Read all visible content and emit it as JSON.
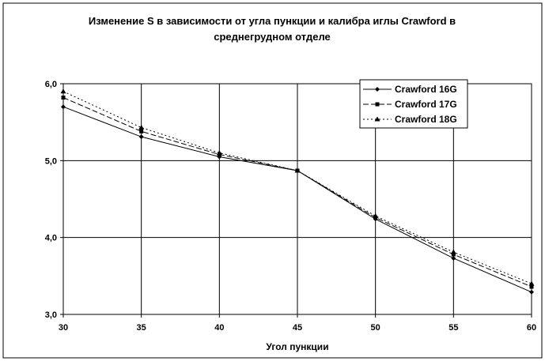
{
  "chart_data": {
    "type": "line",
    "title": "Изменение S в зависимости от угла пункции и калибра иглы Crawford  в среднегрудном отделе",
    "title_lines": [
      "Изменение S в зависимости от угла пункции и калибра иглы Crawford  в",
      "среднегрудном отделе"
    ],
    "xlabel": "Угол пункции",
    "ylabel": "",
    "x": [
      30,
      35,
      40,
      45,
      50,
      55,
      60
    ],
    "x_tick_labels": [
      "30",
      "35",
      "40",
      "45",
      "50",
      "55",
      "60"
    ],
    "y_tick_labels": [
      "3,0",
      "4,0",
      "5,0",
      "6,0"
    ],
    "y_ticks": [
      3.0,
      4.0,
      5.0,
      6.0
    ],
    "ylim": [
      3.0,
      6.0
    ],
    "xlim": [
      30,
      60
    ],
    "grid": true,
    "legend_position": "top-right",
    "series": [
      {
        "name": "Crawford  16G",
        "values": [
          5.7,
          5.31,
          5.05,
          4.87,
          4.24,
          3.73,
          3.29
        ],
        "marker": "diamond",
        "dash": "solid",
        "color": "#000000"
      },
      {
        "name": "Crawford  17G",
        "values": [
          5.82,
          5.38,
          5.08,
          4.87,
          4.26,
          3.78,
          3.36
        ],
        "marker": "square",
        "dash": "dashed",
        "color": "#000000"
      },
      {
        "name": "Crawford  18G",
        "values": [
          5.9,
          5.43,
          5.1,
          4.87,
          4.28,
          3.81,
          3.4
        ],
        "marker": "triangle",
        "dash": "dotted",
        "color": "#000000"
      }
    ]
  }
}
